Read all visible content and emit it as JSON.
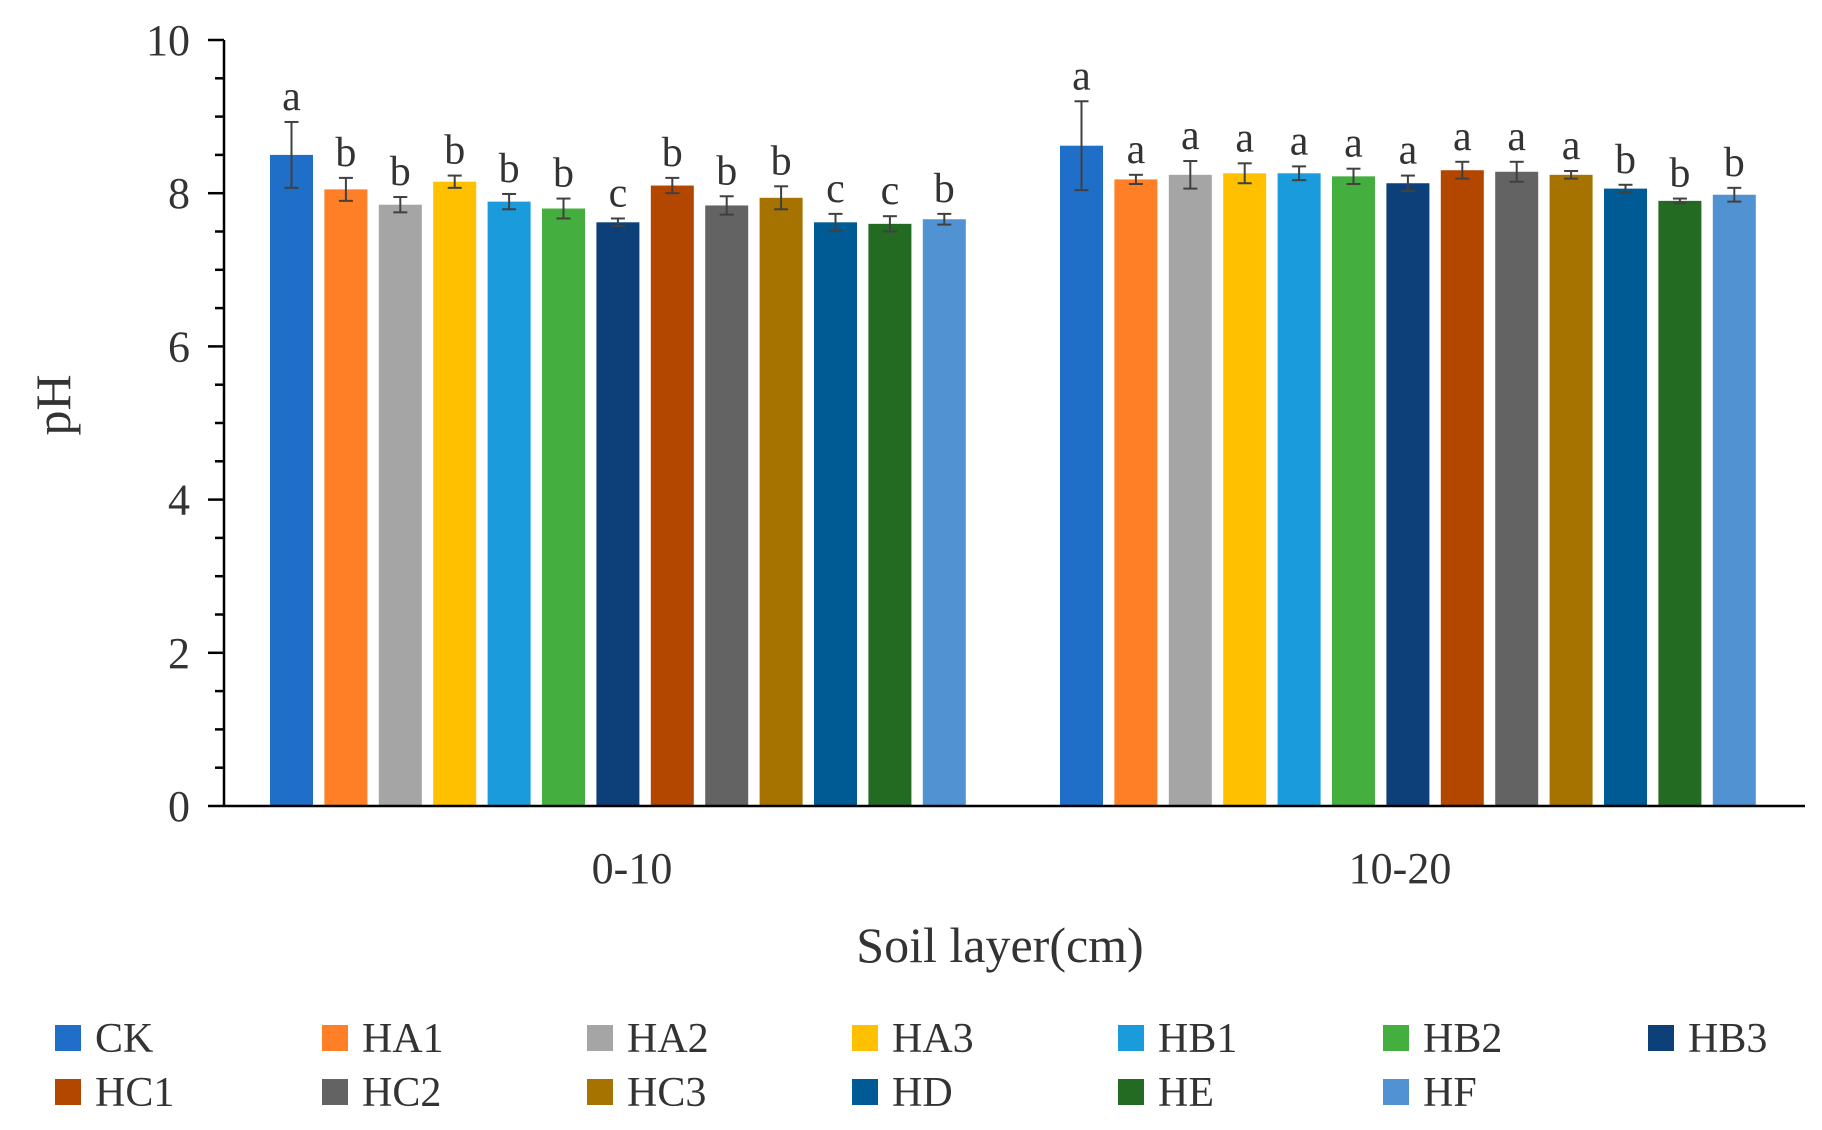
{
  "chart_data": {
    "type": "bar",
    "title": "",
    "xlabel": "Soil layer(cm)",
    "ylabel": "pH",
    "ylim": [
      0,
      10
    ],
    "yticks": [
      "0",
      "2",
      "4",
      "6",
      "8",
      "10"
    ],
    "categories": [
      "0-10",
      "10-20"
    ],
    "legend_position": "bottom",
    "series": [
      {
        "name": "CK",
        "color": "#1F6FC9",
        "values": [
          8.5,
          8.62
        ],
        "errors": [
          0.43,
          0.58
        ],
        "letters": [
          "a",
          "a"
        ]
      },
      {
        "name": "HA1",
        "color": "#FF7F27",
        "values": [
          8.05,
          8.18
        ],
        "errors": [
          0.15,
          0.06
        ],
        "letters": [
          "b",
          "a"
        ]
      },
      {
        "name": "HA2",
        "color": "#A5A5A5",
        "values": [
          7.85,
          8.24
        ],
        "errors": [
          0.1,
          0.18
        ],
        "letters": [
          "b",
          "a"
        ]
      },
      {
        "name": "HA3",
        "color": "#FFC000",
        "values": [
          8.15,
          8.26
        ],
        "errors": [
          0.08,
          0.13
        ],
        "letters": [
          "b",
          "a"
        ]
      },
      {
        "name": "HB1",
        "color": "#1A9BDC",
        "values": [
          7.89,
          8.26
        ],
        "errors": [
          0.1,
          0.09
        ],
        "letters": [
          "b",
          "a"
        ]
      },
      {
        "name": "HB2",
        "color": "#44AF3F",
        "values": [
          7.8,
          8.22
        ],
        "errors": [
          0.13,
          0.1
        ],
        "letters": [
          "b",
          "a"
        ]
      },
      {
        "name": "HB3",
        "color": "#0D3F78",
        "values": [
          7.62,
          8.13
        ],
        "errors": [
          0.05,
          0.1
        ],
        "letters": [
          "c",
          "a"
        ]
      },
      {
        "name": "HC1",
        "color": "#B34700",
        "values": [
          8.1,
          8.3
        ],
        "errors": [
          0.1,
          0.11
        ],
        "letters": [
          "b",
          "a"
        ]
      },
      {
        "name": "HC2",
        "color": "#636363",
        "values": [
          7.84,
          8.28
        ],
        "errors": [
          0.12,
          0.13
        ],
        "letters": [
          "b",
          "a"
        ]
      },
      {
        "name": "HC3",
        "color": "#A67300",
        "values": [
          7.94,
          8.24
        ],
        "errors": [
          0.15,
          0.05
        ],
        "letters": [
          "b",
          "a"
        ]
      },
      {
        "name": "HD",
        "color": "#005B94",
        "values": [
          7.62,
          8.06
        ],
        "errors": [
          0.11,
          0.05
        ],
        "letters": [
          "c",
          "b"
        ]
      },
      {
        "name": "HE",
        "color": "#236A23",
        "values": [
          7.6,
          7.9
        ],
        "errors": [
          0.1,
          0.03
        ],
        "letters": [
          "c",
          "b"
        ]
      },
      {
        "name": "HF",
        "color": "#5192D3",
        "values": [
          7.66,
          7.98
        ],
        "errors": [
          0.07,
          0.09
        ],
        "letters": [
          "b",
          "b"
        ]
      }
    ]
  }
}
